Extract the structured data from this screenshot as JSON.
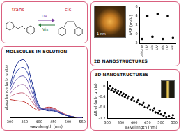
{
  "scheme": {
    "labels": [
      "trans",
      "cis"
    ],
    "arrows": [
      "UV",
      "Vis"
    ]
  },
  "chart_data": [
    {
      "type": "scatter",
      "title": "2D NANOSTRUCTURES",
      "annotations": [
        "1 nm"
      ],
      "categories": [
        "pristine",
        "UV",
        "vis",
        "UV",
        "vis",
        "UV",
        "vis"
      ],
      "values": [
        -1,
        4,
        -0.5,
        4.5,
        -1,
        4,
        -0.8
      ],
      "color": "#000000",
      "marker": "square",
      "ylabel": "ΔSP (meV)",
      "ylim": [
        -2,
        6
      ],
      "yticks": [
        -2,
        0,
        2,
        4,
        6
      ],
      "grid": false
    },
    {
      "type": "line",
      "title": "MOLECULES IN SOLUTION",
      "xlabel": "wavelength (nm)",
      "ylabel": "absorbance (arb. units)",
      "x": [
        300,
        325,
        350,
        375,
        400,
        425,
        450,
        475,
        500,
        525,
        550
      ],
      "series": [
        {
          "color": "#1b2d8f",
          "values": [
            0.55,
            0.9,
            0.95,
            0.6,
            0.2,
            0.12,
            0.11,
            0.07,
            0.03,
            0.01,
            0
          ]
        },
        {
          "color": "#3a4fb0",
          "values": [
            0.5,
            0.78,
            0.82,
            0.52,
            0.18,
            0.13,
            0.12,
            0.07,
            0.03,
            0.01,
            0
          ]
        },
        {
          "color": "#6a5fb4",
          "values": [
            0.45,
            0.65,
            0.68,
            0.43,
            0.16,
            0.14,
            0.13,
            0.08,
            0.03,
            0.01,
            0
          ]
        },
        {
          "color": "#9a6aa8",
          "values": [
            0.4,
            0.52,
            0.54,
            0.35,
            0.14,
            0.15,
            0.14,
            0.08,
            0.03,
            0.01,
            0
          ]
        },
        {
          "color": "#c86a80",
          "values": [
            0.35,
            0.4,
            0.4,
            0.27,
            0.13,
            0.16,
            0.15,
            0.09,
            0.04,
            0.01,
            0
          ]
        },
        {
          "color": "#c0302c",
          "values": [
            0.3,
            0.28,
            0.26,
            0.18,
            0.12,
            0.17,
            0.16,
            0.09,
            0.04,
            0.01,
            0
          ]
        }
      ],
      "xlim": [
        300,
        550
      ],
      "xticks": [
        300,
        350,
        400,
        450,
        500,
        550
      ],
      "ylim": [
        0,
        1
      ],
      "tick_labels": "x",
      "grid": false
    },
    {
      "type": "scatter",
      "title": "3D NANOSTRUCTURES",
      "xlabel": "wavelength (nm)",
      "ylabel": "ΔRrel (arb. units)",
      "x": [
        300,
        305,
        310,
        315,
        320,
        325,
        330,
        335,
        340,
        345,
        350,
        355,
        360,
        365,
        370,
        375,
        380,
        390,
        395,
        400,
        410,
        415,
        420,
        430,
        435,
        440,
        450,
        455,
        460,
        470,
        475,
        480,
        490,
        495,
        500,
        510,
        515,
        520,
        530,
        540,
        545
      ],
      "values": [
        -0.05,
        -0.1,
        0.02,
        -0.15,
        -0.08,
        -0.2,
        -0.12,
        -0.25,
        -0.18,
        -0.3,
        -0.22,
        -0.35,
        -0.28,
        -0.4,
        -0.33,
        -0.45,
        -0.38,
        -0.5,
        -0.43,
        -0.55,
        -0.6,
        -0.52,
        -0.68,
        -0.7,
        -0.62,
        -0.78,
        -0.8,
        -0.72,
        -0.88,
        -0.9,
        -0.82,
        -0.98,
        -1.0,
        -0.92,
        -1.05,
        -1.1,
        -1.0,
        -1.15,
        -1.12,
        -1.2,
        -1.08
      ],
      "color": "#000000",
      "marker": "circle",
      "xlim": [
        300,
        550
      ],
      "xticks": [
        300,
        350,
        400,
        450,
        500,
        550
      ],
      "ylim": [
        -1.2,
        0.2
      ],
      "yticks": [
        -1.2,
        -0.8,
        -0.4,
        0
      ],
      "grid": false
    }
  ]
}
